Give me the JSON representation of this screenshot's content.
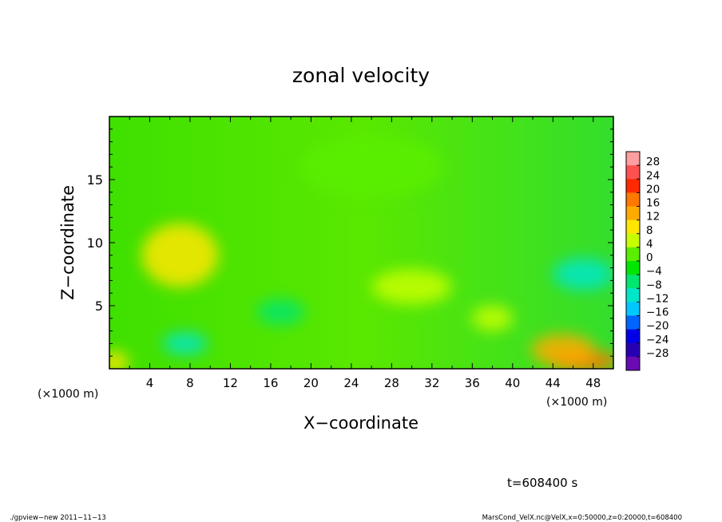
{
  "chart_data": {
    "type": "heatmap",
    "title": "zonal velocity",
    "xlabel": "X−coordinate",
    "ylabel": "Z−coordinate",
    "x_unit_left": "(×1000 m)",
    "x_unit_right": "(×1000 m)",
    "xlim": [
      0,
      50
    ],
    "ylim": [
      0,
      20
    ],
    "x_ticks": [
      4,
      8,
      12,
      16,
      20,
      24,
      28,
      32,
      36,
      40,
      44,
      48
    ],
    "x_tick_labels": [
      "4",
      "8",
      "12",
      "16",
      "20",
      "24",
      "28",
      "32",
      "36",
      "40",
      "44",
      "48"
    ],
    "y_ticks": [
      5,
      10,
      15
    ],
    "y_tick_labels": [
      "5",
      "10",
      "15"
    ],
    "colorbar": {
      "levels": [
        28,
        24,
        20,
        16,
        12,
        8,
        4,
        0,
        -4,
        -8,
        -12,
        -16,
        -20,
        -24,
        -28
      ],
      "labels": [
        "28",
        "24",
        "20",
        "16",
        "12",
        "8",
        "4",
        "0",
        "−4",
        "−8",
        "−12",
        "−16",
        "−20",
        "−24",
        "−28"
      ],
      "colors": [
        "#ff9ea0",
        "#ff5050",
        "#ff2a00",
        "#ff7800",
        "#ffaa00",
        "#ffe600",
        "#c8ff00",
        "#5aee00",
        "#00e600",
        "#00e66e",
        "#00e6c8",
        "#00c8ff",
        "#0064ff",
        "#0000e6",
        "#2800b4",
        "#6a0ab4"
      ]
    },
    "field_features": [
      {
        "x": 7,
        "z": 9,
        "value": 9
      },
      {
        "x": 30,
        "z": 6.5,
        "value": 7
      },
      {
        "x": 47,
        "z": 0.6,
        "value": 19
      },
      {
        "x": 45,
        "z": 1.5,
        "value": 13
      },
      {
        "x": 47,
        "z": 7.5,
        "value": -12
      },
      {
        "x": 7.5,
        "z": 2,
        "value": -12
      },
      {
        "x": 17,
        "z": 4.5,
        "value": -7
      },
      {
        "x": 0.5,
        "z": 0.5,
        "value": 10
      },
      {
        "x": 26,
        "z": 16,
        "value": 3
      },
      {
        "x": 38,
        "z": 4,
        "value": 5
      }
    ],
    "time_label": "t=608400 s",
    "footer_left": "./gpview−new  2011−11−13",
    "footer_right": "MarsCond_VelX.nc@VelX,x=0:50000,z=0:20000,t=608400"
  }
}
